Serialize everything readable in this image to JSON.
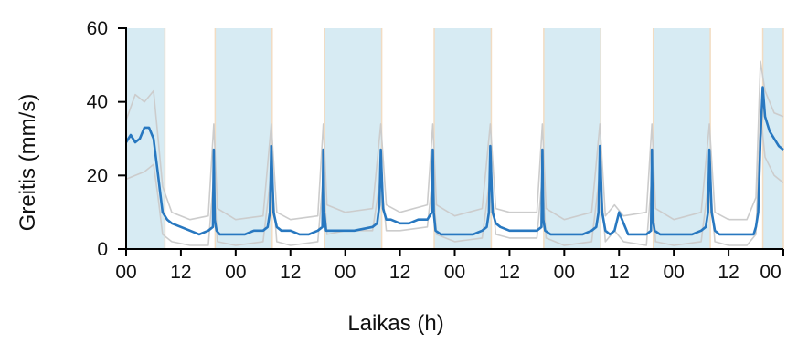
{
  "chart_data": {
    "type": "line",
    "xlabel": "Laikas (h)",
    "ylabel": "Greitis (mm/s)",
    "xlim": [
      0,
      144
    ],
    "ylim": [
      0,
      60
    ],
    "yticks": [
      0,
      20,
      40,
      60
    ],
    "xticks": [
      0,
      12,
      24,
      36,
      48,
      60,
      72,
      84,
      96,
      108,
      120,
      132,
      144
    ],
    "xtick_labels": [
      "00",
      "12",
      "00",
      "12",
      "00",
      "12",
      "00",
      "12",
      "00",
      "12",
      "00",
      "12",
      "00"
    ],
    "shaded_periods": [
      [
        0,
        8.5
      ],
      [
        19.5,
        32
      ],
      [
        43.5,
        56
      ],
      [
        67.5,
        80
      ],
      [
        91.5,
        104
      ],
      [
        115.5,
        128
      ],
      [
        139.5,
        144
      ]
    ],
    "colors": {
      "mean_line": "#2878c0",
      "band_line": "#cccccc",
      "shade": "#d7ebf3"
    },
    "series": [
      {
        "role": "mean",
        "x": [
          0,
          1,
          2,
          3,
          4,
          5,
          6,
          7,
          7.5,
          8,
          9,
          10,
          12,
          14,
          16,
          18,
          19,
          19.2,
          19.4,
          19.8,
          20.5,
          22,
          24,
          26,
          28,
          30,
          31,
          31.5,
          31.8,
          32.3,
          33,
          34,
          36,
          38,
          40,
          42,
          43,
          43.2,
          43.4,
          43.8,
          45,
          48,
          50,
          54,
          55,
          55.5,
          55.8,
          56.3,
          57,
          58,
          60,
          62,
          64,
          66,
          67,
          67.2,
          67.4,
          67.8,
          69,
          72,
          76,
          78,
          79,
          79.5,
          79.8,
          80.3,
          81,
          82,
          84,
          86,
          88,
          90,
          91,
          91.2,
          91.4,
          91.8,
          93,
          96,
          100,
          102,
          103,
          103.5,
          103.8,
          104.3,
          105,
          106,
          107,
          108,
          109,
          110,
          112,
          114,
          115,
          115.2,
          115.4,
          115.8,
          117,
          120,
          124,
          126,
          127,
          127.5,
          127.8,
          128.3,
          129,
          130,
          132,
          134,
          136,
          137.5,
          138,
          138.5,
          139,
          139.5,
          140,
          141,
          142,
          143,
          144
        ],
        "y": [
          29,
          31,
          29,
          30,
          33,
          33,
          30,
          20,
          15,
          10,
          8,
          7,
          6,
          5,
          4,
          5,
          6,
          27,
          8,
          5,
          4,
          4,
          4,
          4,
          5,
          5,
          6,
          10,
          28,
          10,
          6,
          5,
          5,
          4,
          4,
          5,
          6,
          27,
          10,
          5,
          5,
          5,
          5,
          6,
          7,
          12,
          27,
          11,
          8,
          8,
          7,
          7,
          8,
          8,
          10,
          27,
          10,
          5,
          4,
          4,
          4,
          5,
          6,
          10,
          28,
          10,
          7,
          6,
          5,
          5,
          5,
          5,
          6,
          27,
          8,
          5,
          4,
          4,
          4,
          5,
          6,
          10,
          28,
          10,
          5,
          4,
          5,
          10,
          7,
          4,
          4,
          4,
          5,
          27,
          8,
          5,
          4,
          4,
          4,
          5,
          6,
          10,
          27,
          10,
          5,
          4,
          4,
          4,
          4,
          4,
          6,
          10,
          30,
          44,
          36,
          32,
          30,
          28,
          27
        ]
      },
      {
        "role": "upper",
        "x": [
          0,
          2,
          4,
          6,
          7,
          8,
          10,
          14,
          18,
          19.2,
          20,
          24,
          30,
          31.8,
          33,
          36,
          42,
          43.2,
          44,
          48,
          54,
          55.8,
          57,
          60,
          66,
          67.2,
          68,
          72,
          78,
          79.8,
          81,
          84,
          90,
          91.2,
          92,
          96,
          102,
          103.8,
          105,
          107,
          109,
          114,
          115.2,
          116,
          120,
          126,
          127.8,
          129,
          132,
          136,
          138,
          139,
          140,
          142,
          144
        ],
        "y": [
          35,
          42,
          40,
          43,
          30,
          17,
          10,
          8,
          9,
          34,
          11,
          8,
          9,
          34,
          10,
          8,
          9,
          34,
          12,
          10,
          11,
          34,
          12,
          10,
          12,
          34,
          12,
          9,
          11,
          34,
          11,
          10,
          10,
          34,
          11,
          8,
          10,
          34,
          9,
          12,
          9,
          10,
          34,
          11,
          8,
          10,
          34,
          10,
          8,
          8,
          14,
          51,
          43,
          37,
          36
        ]
      },
      {
        "role": "lower",
        "x": [
          0,
          2,
          4,
          6,
          7,
          8,
          10,
          14,
          18,
          19.2,
          20,
          24,
          30,
          31.8,
          33,
          36,
          42,
          43.2,
          44,
          48,
          54,
          55.8,
          57,
          60,
          66,
          67.2,
          68,
          72,
          78,
          79.8,
          81,
          84,
          90,
          91.2,
          92,
          96,
          102,
          103.8,
          105,
          107,
          109,
          114,
          115.2,
          116,
          120,
          126,
          127.8,
          129,
          132,
          136,
          138,
          139,
          140,
          142,
          144
        ],
        "y": [
          19,
          20,
          21,
          23,
          14,
          4,
          2,
          1,
          1,
          20,
          2,
          1,
          2,
          21,
          2,
          1,
          2,
          20,
          4,
          5,
          5,
          20,
          5,
          5,
          6,
          20,
          4,
          2,
          3,
          20,
          4,
          3,
          3,
          20,
          3,
          1,
          2,
          21,
          2,
          5,
          2,
          1,
          20,
          2,
          1,
          2,
          20,
          2,
          1,
          1,
          4,
          37,
          25,
          20,
          18
        ]
      }
    ]
  }
}
